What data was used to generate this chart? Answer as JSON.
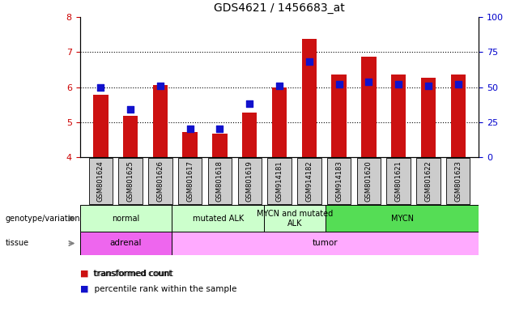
{
  "title": "GDS4621 / 1456683_at",
  "samples": [
    "GSM801624",
    "GSM801625",
    "GSM801626",
    "GSM801617",
    "GSM801618",
    "GSM801619",
    "GSM914181",
    "GSM914182",
    "GSM914183",
    "GSM801620",
    "GSM801621",
    "GSM801622",
    "GSM801623"
  ],
  "red_values": [
    5.77,
    5.17,
    6.05,
    4.72,
    4.67,
    5.27,
    6.0,
    7.38,
    6.37,
    6.87,
    6.35,
    6.27,
    6.37
  ],
  "blue_values": [
    50,
    34,
    51,
    20,
    20,
    38,
    51,
    68,
    52,
    54,
    52,
    51,
    52
  ],
  "ylim_left": [
    4,
    8
  ],
  "ylim_right": [
    0,
    100
  ],
  "yticks_left": [
    4,
    5,
    6,
    7,
    8
  ],
  "yticks_right": [
    0,
    25,
    50,
    75,
    100
  ],
  "genotype_groups": [
    {
      "label": "normal",
      "start": 0,
      "end": 3,
      "color": "#ccffcc"
    },
    {
      "label": "mutated ALK",
      "start": 3,
      "end": 6,
      "color": "#ccffcc"
    },
    {
      "label": "MYCN and mutated\nALK",
      "start": 6,
      "end": 8,
      "color": "#ccffcc"
    },
    {
      "label": "MYCN",
      "start": 8,
      "end": 13,
      "color": "#55dd55"
    }
  ],
  "tissue_groups": [
    {
      "label": "adrenal",
      "start": 0,
      "end": 3,
      "color": "#ee66ee"
    },
    {
      "label": "tumor",
      "start": 3,
      "end": 13,
      "color": "#ffaaff"
    }
  ],
  "bar_color": "#cc1111",
  "dot_color": "#1111cc",
  "bar_width": 0.5,
  "dot_size": 30,
  "legend_red": "transformed count",
  "legend_blue": "percentile rank within the sample",
  "tick_label_color_left": "#cc0000",
  "tick_label_color_right": "#0000cc",
  "hgrid_ticks": [
    5,
    6,
    7
  ],
  "sample_box_color": "#cccccc"
}
